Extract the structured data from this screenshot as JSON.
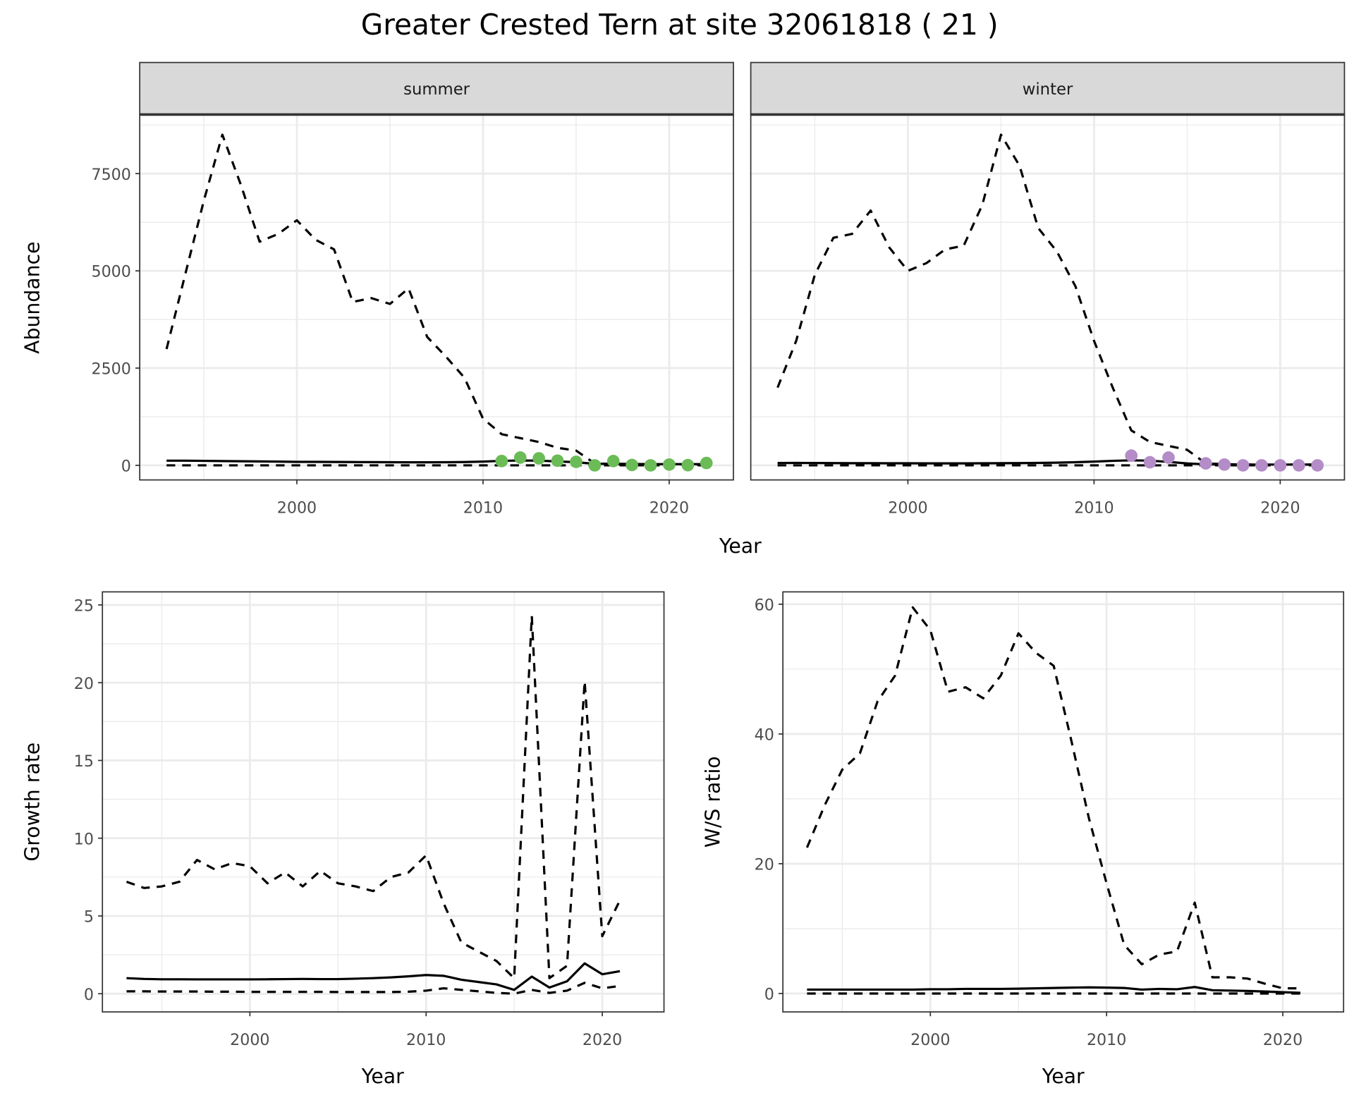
{
  "chart_data": [
    {
      "type": "line",
      "title": "Greater Crested Tern at site 32061818 ( 21 )",
      "xlabel": "Year",
      "ylabel": "Abundance",
      "grid": true,
      "panels": [
        {
          "strip": "summer",
          "xlim": [
            1991.56,
            2023.45
          ],
          "ylim": [
            -375,
            9018
          ],
          "xticks": [
            2000,
            2010,
            2020
          ],
          "xtick_labels": [
            "2000",
            "2010",
            "2020"
          ],
          "yticks": [
            0,
            2500,
            5000,
            7500
          ],
          "ytick_labels": [
            "0",
            "2500",
            "5000",
            "7500"
          ],
          "series": [
            {
              "style": "dashed",
              "x": [
                1993,
                1994,
                1995,
                1996,
                1997,
                1998,
                1999,
                2000,
                2001,
                2002,
                2003,
                2004,
                2005,
                2006,
                2007,
                2008,
                2009,
                2010,
                2011,
                2012,
                2013,
                2014,
                2015,
                2016,
                2017,
                2018,
                2019,
                2020,
                2021,
                2022
              ],
              "y": [
                2990,
                4900,
                6800,
                8500,
                7200,
                5750,
                5950,
                6300,
                5800,
                5550,
                4200,
                4300,
                4150,
                4550,
                3300,
                2800,
                2250,
                1200,
                800,
                700,
                600,
                450,
                380,
                50,
                30,
                20,
                20,
                20,
                20,
                20
              ]
            },
            {
              "style": "solid",
              "x": [
                1993,
                1994,
                1995,
                1996,
                1997,
                1998,
                1999,
                2000,
                2001,
                2002,
                2003,
                2004,
                2005,
                2006,
                2007,
                2008,
                2009,
                2010,
                2011,
                2012,
                2013,
                2014,
                2015,
                2016,
                2017,
                2018,
                2019,
                2020,
                2021,
                2022
              ],
              "y": [
                120,
                120,
                115,
                110,
                105,
                100,
                95,
                90,
                88,
                86,
                84,
                82,
                80,
                79,
                78,
                80,
                85,
                95,
                115,
                125,
                120,
                100,
                80,
                40,
                40,
                35,
                30,
                30,
                30,
                30
              ]
            },
            {
              "style": "dashed",
              "x": [
                1993,
                1994,
                1995,
                1996,
                1997,
                1998,
                1999,
                2000,
                2001,
                2002,
                2003,
                2004,
                2005,
                2006,
                2007,
                2008,
                2009,
                2010,
                2011,
                2012,
                2013,
                2014,
                2015,
                2016,
                2017,
                2018,
                2019,
                2020,
                2021,
                2022
              ],
              "y": [
                0,
                0,
                0,
                0,
                0,
                0,
                0,
                0,
                0,
                0,
                0,
                0,
                0,
                0,
                0,
                0,
                0,
                0,
                0,
                0,
                0,
                0,
                0,
                0,
                0,
                0,
                0,
                0,
                0,
                0
              ]
            }
          ],
          "points": {
            "color": "#6bbb57",
            "x": [
              2011,
              2012,
              2013,
              2014,
              2015,
              2016,
              2017,
              2018,
              2019,
              2020,
              2021,
              2022
            ],
            "y": [
              110,
              200,
              180,
              120,
              90,
              0,
              110,
              10,
              0,
              20,
              5,
              60
            ]
          }
        },
        {
          "strip": "winter",
          "xlim": [
            1991.56,
            2023.45
          ],
          "ylim": [
            -375,
            9018
          ],
          "xticks": [
            2000,
            2010,
            2020
          ],
          "xtick_labels": [
            "2000",
            "2010",
            "2020"
          ],
          "yticks": [
            0,
            2500,
            5000,
            7500
          ],
          "ytick_labels": [],
          "series": [
            {
              "style": "dashed",
              "x": [
                1993,
                1994,
                1995,
                1996,
                1997,
                1998,
                1999,
                2000,
                2001,
                2002,
                2003,
                2004,
                2005,
                2006,
                2007,
                2008,
                2009,
                2010,
                2011,
                2012,
                2013,
                2014,
                2015,
                2016,
                2017,
                2018,
                2019,
                2020,
                2021,
                2022
              ],
              "y": [
                2000,
                3200,
                4900,
                5850,
                5950,
                6550,
                5600,
                5000,
                5200,
                5550,
                5650,
                6700,
                8500,
                7700,
                6100,
                5500,
                4600,
                3200,
                2000,
                900,
                600,
                500,
                400,
                50,
                30,
                20,
                20,
                20,
                20,
                20
              ]
            },
            {
              "style": "solid",
              "x": [
                1993,
                1994,
                1995,
                1996,
                1997,
                1998,
                1999,
                2000,
                2001,
                2002,
                2003,
                2004,
                2005,
                2006,
                2007,
                2008,
                2009,
                2010,
                2011,
                2012,
                2013,
                2014,
                2015,
                2016,
                2017,
                2018,
                2019,
                2020,
                2021,
                2022
              ],
              "y": [
                60,
                62,
                60,
                58,
                56,
                55,
                54,
                53,
                52,
                52,
                52,
                53,
                55,
                58,
                62,
                68,
                80,
                95,
                115,
                130,
                120,
                90,
                50,
                25,
                20,
                20,
                20,
                20,
                20,
                20
              ]
            },
            {
              "style": "dashed",
              "x": [
                1993,
                1994,
                1995,
                1996,
                1997,
                1998,
                1999,
                2000,
                2001,
                2002,
                2003,
                2004,
                2005,
                2006,
                2007,
                2008,
                2009,
                2010,
                2011,
                2012,
                2013,
                2014,
                2015,
                2016,
                2017,
                2018,
                2019,
                2020,
                2021,
                2022
              ],
              "y": [
                0,
                0,
                0,
                0,
                0,
                0,
                0,
                0,
                0,
                0,
                0,
                0,
                0,
                0,
                0,
                0,
                0,
                0,
                0,
                0,
                0,
                0,
                0,
                0,
                0,
                0,
                0,
                0,
                0,
                0
              ]
            }
          ],
          "points": {
            "color": "#b48cc8",
            "x": [
              2012,
              2013,
              2014,
              2016,
              2017,
              2018,
              2019,
              2020,
              2021,
              2022
            ],
            "y": [
              250,
              80,
              200,
              50,
              20,
              0,
              0,
              0,
              0,
              0
            ]
          }
        }
      ]
    },
    {
      "type": "line",
      "xlabel": "Year",
      "ylabel": "Growth rate",
      "grid": true,
      "xlim": [
        1991.63,
        2023.5
      ],
      "ylim": [
        -1.17,
        25.84
      ],
      "xticks": [
        2000,
        2010,
        2020
      ],
      "xtick_labels": [
        "2000",
        "2010",
        "2020"
      ],
      "yticks": [
        0,
        5,
        10,
        15,
        20,
        25
      ],
      "ytick_labels": [
        "0",
        "5",
        "10",
        "15",
        "20",
        "25"
      ],
      "series": [
        {
          "style": "dashed",
          "x": [
            1993,
            1994,
            1995,
            1996,
            1997,
            1998,
            1999,
            2000,
            2001,
            2002,
            2003,
            2004,
            2005,
            2006,
            2007,
            2008,
            2009,
            2010,
            2011,
            2012,
            2013,
            2014,
            2015,
            2016,
            2017,
            2018,
            2019,
            2020,
            2021
          ],
          "y": [
            7.2,
            6.8,
            6.9,
            7.2,
            8.6,
            8.0,
            8.4,
            8.2,
            7.1,
            7.8,
            6.9,
            7.9,
            7.1,
            6.9,
            6.6,
            7.5,
            7.8,
            8.9,
            5.8,
            3.3,
            2.7,
            2.1,
            1.0,
            24.3,
            1.0,
            1.8,
            20.1,
            3.7,
            6.0
          ]
        },
        {
          "style": "solid",
          "x": [
            1993,
            1994,
            1995,
            1996,
            1997,
            1998,
            1999,
            2000,
            2001,
            2002,
            2003,
            2004,
            2005,
            2006,
            2007,
            2008,
            2009,
            2010,
            2011,
            2012,
            2013,
            2014,
            2015,
            2016,
            2017,
            2018,
            2019,
            2020,
            2021
          ],
          "y": [
            1.0,
            0.95,
            0.93,
            0.93,
            0.92,
            0.92,
            0.92,
            0.92,
            0.93,
            0.94,
            0.95,
            0.94,
            0.94,
            0.97,
            1.0,
            1.05,
            1.12,
            1.2,
            1.15,
            0.9,
            0.75,
            0.6,
            0.25,
            1.1,
            0.4,
            0.8,
            1.95,
            1.25,
            1.45
          ]
        },
        {
          "style": "dashed",
          "x": [
            1993,
            1994,
            1995,
            1996,
            1997,
            1998,
            1999,
            2000,
            2001,
            2002,
            2003,
            2004,
            2005,
            2006,
            2007,
            2008,
            2009,
            2010,
            2011,
            2012,
            2013,
            2014,
            2015,
            2016,
            2017,
            2018,
            2019,
            2020,
            2021
          ],
          "y": [
            0.15,
            0.15,
            0.14,
            0.14,
            0.14,
            0.13,
            0.13,
            0.12,
            0.12,
            0.12,
            0.12,
            0.12,
            0.11,
            0.11,
            0.11,
            0.11,
            0.13,
            0.2,
            0.35,
            0.25,
            0.15,
            0.05,
            0.0,
            0.25,
            0.05,
            0.2,
            0.7,
            0.35,
            0.5
          ]
        }
      ]
    },
    {
      "type": "line",
      "xlabel": "Year",
      "ylabel": "W/S ratio",
      "grid": true,
      "xlim": [
        1991.63,
        2023.45
      ],
      "ylim": [
        -2.84,
        61.9
      ],
      "xticks": [
        2000,
        2010,
        2020
      ],
      "xtick_labels": [
        "2000",
        "2010",
        "2020"
      ],
      "yticks": [
        0,
        20,
        40,
        60
      ],
      "ytick_labels": [
        "0",
        "20",
        "40",
        "60"
      ],
      "series": [
        {
          "style": "dashed",
          "x": [
            1993,
            1994,
            1995,
            1996,
            1997,
            1998,
            1999,
            2000,
            2001,
            2002,
            2003,
            2004,
            2005,
            2006,
            2007,
            2008,
            2009,
            2010,
            2011,
            2012,
            2013,
            2014,
            2015,
            2016,
            2017,
            2018,
            2019,
            2020,
            2021
          ],
          "y": [
            22.5,
            29,
            34.5,
            37,
            45,
            49,
            59.5,
            56,
            46.5,
            47.2,
            45.5,
            49,
            55.5,
            52.5,
            50.5,
            39,
            27,
            17,
            7.5,
            4.5,
            6,
            6.5,
            14,
            2.5,
            2.5,
            2.3,
            1.5,
            0.8,
            0.8
          ]
        },
        {
          "style": "solid",
          "x": [
            1993,
            1994,
            1995,
            1996,
            1997,
            1998,
            1999,
            2000,
            2001,
            2002,
            2003,
            2004,
            2005,
            2006,
            2007,
            2008,
            2009,
            2010,
            2011,
            2012,
            2013,
            2014,
            2015,
            2016,
            2017,
            2018,
            2019,
            2020,
            2021
          ],
          "y": [
            0.6,
            0.6,
            0.6,
            0.6,
            0.6,
            0.6,
            0.6,
            0.65,
            0.65,
            0.7,
            0.7,
            0.7,
            0.75,
            0.8,
            0.85,
            0.9,
            0.95,
            0.9,
            0.85,
            0.6,
            0.7,
            0.65,
            1.0,
            0.5,
            0.45,
            0.4,
            0.3,
            0.2,
            0.1
          ]
        },
        {
          "style": "dashed",
          "x": [
            1993,
            1994,
            1995,
            1996,
            1997,
            1998,
            1999,
            2000,
            2001,
            2002,
            2003,
            2004,
            2005,
            2006,
            2007,
            2008,
            2009,
            2010,
            2011,
            2012,
            2013,
            2014,
            2015,
            2016,
            2017,
            2018,
            2019,
            2020,
            2021
          ],
          "y": [
            0,
            0,
            0,
            0,
            0,
            0,
            0,
            0,
            0,
            0,
            0,
            0,
            0,
            0,
            0,
            0,
            0,
            0,
            0,
            0,
            0,
            0,
            0,
            0,
            0,
            0,
            0,
            0,
            0
          ]
        }
      ]
    }
  ]
}
